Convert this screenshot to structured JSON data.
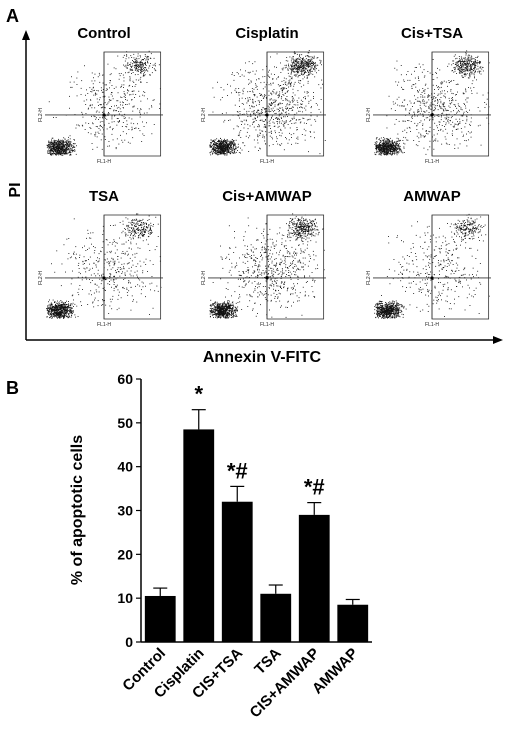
{
  "panel_a": {
    "label": "A",
    "x_axis_label": "Annexin V-FITC",
    "y_axis_label": "PI",
    "plots": [
      {
        "title": "Control",
        "x_channel": "FL1-H",
        "y_channel": "FL2-H",
        "density": 0.55
      },
      {
        "title": "Cisplatin",
        "x_channel": "FL1-H",
        "y_channel": "FL2-H",
        "density": 1.0
      },
      {
        "title": "Cis+TSA",
        "x_channel": "FL1-H",
        "y_channel": "FL2-H",
        "density": 0.8
      },
      {
        "title": "TSA",
        "x_channel": "FL1-H",
        "y_channel": "FL2-H",
        "density": 0.55
      },
      {
        "title": "Cis+AMWAP",
        "x_channel": "FL1-H",
        "y_channel": "FL2-H",
        "density": 0.85
      },
      {
        "title": "AMWAP",
        "x_channel": "FL1-H",
        "y_channel": "FL2-H",
        "density": 0.5
      }
    ]
  },
  "panel_b": {
    "label": "B"
  },
  "chart_data": {
    "type": "bar",
    "title": "",
    "xlabel": "",
    "ylabel": "% of apoptotic cells",
    "ylim": [
      0,
      60
    ],
    "yticks": [
      0,
      10,
      20,
      30,
      40,
      50,
      60
    ],
    "categories": [
      "Control",
      "Cisplatin",
      "CIS+TSA",
      "TSA",
      "CIS+AMWAP",
      "AMWAP"
    ],
    "values": [
      10.5,
      48.5,
      32,
      11,
      29,
      8.5
    ],
    "errors": [
      1.8,
      4.5,
      3.5,
      2.0,
      2.8,
      1.2
    ],
    "annotations": [
      "",
      "*",
      "*#",
      "",
      "*#",
      ""
    ],
    "bar_color": "#000000",
    "grid": false
  }
}
